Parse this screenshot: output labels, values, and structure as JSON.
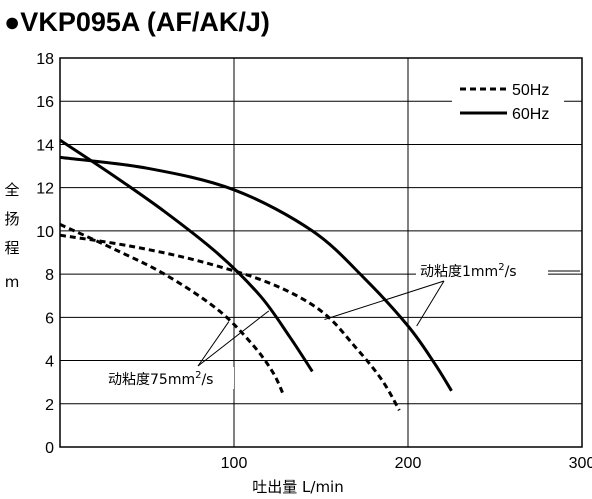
{
  "title": "●VKP095A (AF/AK/J)",
  "chart_data": {
    "type": "line",
    "title": "●VKP095A (AF/AK/J)",
    "xlabel": "吐出量  L/min",
    "ylabel": [
      "全",
      "扬",
      "程",
      "m"
    ],
    "xlim": [
      0,
      300
    ],
    "ylim": [
      0,
      18
    ],
    "x_ticks": [
      "100",
      "200",
      "300"
    ],
    "y_ticks": [
      "0",
      "2",
      "4",
      "6",
      "8",
      "10",
      "12",
      "14",
      "16",
      "18"
    ],
    "grid": true,
    "legend_position": "top-right",
    "legend": [
      {
        "label": "50Hz",
        "style": "dashed"
      },
      {
        "label": "60Hz",
        "style": "solid"
      }
    ],
    "series": [
      {
        "name": "50Hz",
        "viscosity": "1mm2/s",
        "style": "dashed",
        "points": [
          [
            0,
            9.8
          ],
          [
            40,
            9.3
          ],
          [
            80,
            8.6
          ],
          [
            120,
            7.6
          ],
          [
            150,
            6.3
          ],
          [
            170,
            4.6
          ],
          [
            185,
            3.1
          ],
          [
            195,
            1.7
          ]
        ]
      },
      {
        "name": "50Hz",
        "viscosity": "75mm2/s",
        "style": "dashed",
        "points": [
          [
            0,
            10.3
          ],
          [
            30,
            9.2
          ],
          [
            60,
            8.0
          ],
          [
            90,
            6.4
          ],
          [
            110,
            4.8
          ],
          [
            122,
            3.5
          ],
          [
            128,
            2.5
          ]
        ]
      },
      {
        "name": "60Hz",
        "viscosity": "1mm2/s",
        "style": "solid",
        "points": [
          [
            0,
            13.4
          ],
          [
            50,
            12.9
          ],
          [
            100,
            11.9
          ],
          [
            145,
            10.0
          ],
          [
            175,
            7.8
          ],
          [
            200,
            5.6
          ],
          [
            215,
            3.9
          ],
          [
            225,
            2.6
          ]
        ]
      },
      {
        "name": "60Hz",
        "viscosity": "75mm2/s",
        "style": "solid",
        "points": [
          [
            0,
            14.2
          ],
          [
            30,
            12.6
          ],
          [
            60,
            10.9
          ],
          [
            90,
            9.0
          ],
          [
            115,
            7.0
          ],
          [
            132,
            5.1
          ],
          [
            145,
            3.5
          ]
        ]
      }
    ],
    "annotations": [
      {
        "id": "visc1",
        "text_main": "动粘度1mm",
        "text_sup": "2",
        "text_tail": "/s",
        "arrow_targets": [
          [
            152,
            5.9
          ],
          [
            205,
            5.6
          ]
        ]
      },
      {
        "id": "visc75",
        "text_main": "动粘度75mm",
        "text_sup": "2",
        "text_tail": "/s",
        "arrow_targets": [
          [
            97,
            5.8
          ],
          [
            120,
            6.3
          ]
        ]
      }
    ]
  }
}
